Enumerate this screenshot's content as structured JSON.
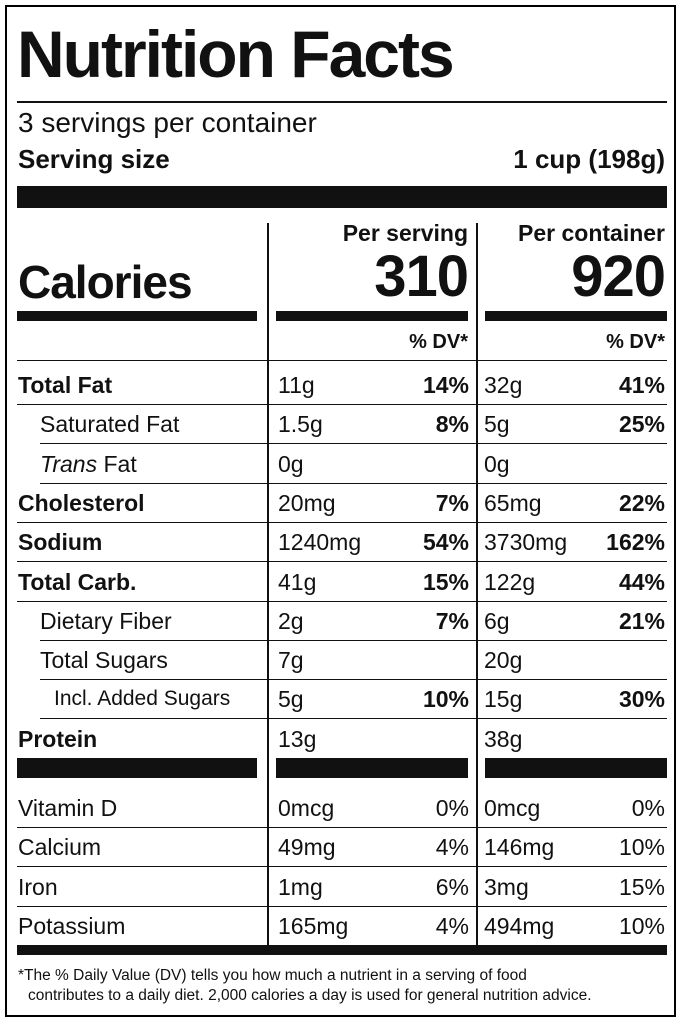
{
  "title": "Nutrition Facts",
  "servings_per_container": "3 servings per container",
  "serving_size": {
    "label": "Serving size",
    "value": "1 cup (198g)"
  },
  "calories": {
    "label": "Calories",
    "per_serving_header": "Per serving",
    "per_container_header": "Per container",
    "per_serving": "310",
    "per_container": "920"
  },
  "dv_header": "% DV*",
  "nutrients": [
    {
      "name": "Total Fat",
      "style": "bold",
      "serving_amount": "11g",
      "serving_dv": "14%",
      "container_amount": "32g",
      "container_dv": "41%"
    },
    {
      "name": "Saturated Fat",
      "style": "indent",
      "serving_amount": "1.5g",
      "serving_dv": "8%",
      "container_amount": "5g",
      "container_dv": "25%"
    },
    {
      "name_italic": "Trans",
      "name": " Fat",
      "style": "indent",
      "serving_amount": "0g",
      "serving_dv": "",
      "container_amount": "0g",
      "container_dv": ""
    },
    {
      "name": "Cholesterol",
      "style": "bold",
      "serving_amount": "20mg",
      "serving_dv": "7%",
      "container_amount": "65mg",
      "container_dv": "22%"
    },
    {
      "name": "Sodium",
      "style": "bold",
      "serving_amount": "1240mg",
      "serving_dv": "54%",
      "container_amount": "3730mg",
      "container_dv": "162%"
    },
    {
      "name": "Total Carb.",
      "style": "bold",
      "serving_amount": "41g",
      "serving_dv": "15%",
      "container_amount": "122g",
      "container_dv": "44%"
    },
    {
      "name": "Dietary Fiber",
      "style": "indent",
      "serving_amount": "2g",
      "serving_dv": "7%",
      "container_amount": "6g",
      "container_dv": "21%"
    },
    {
      "name": "Total Sugars",
      "style": "indent",
      "serving_amount": "7g",
      "serving_dv": "",
      "container_amount": "20g",
      "container_dv": ""
    },
    {
      "name": "Incl. Added Sugars",
      "style": "indent2",
      "serving_amount": "5g",
      "serving_dv": "10%",
      "container_amount": "15g",
      "container_dv": "30%"
    },
    {
      "name": "Protein",
      "style": "bold",
      "serving_amount": "13g",
      "serving_dv": "",
      "container_amount": "38g",
      "container_dv": ""
    }
  ],
  "vitamins": [
    {
      "name": "Vitamin D",
      "serving_amount": "0mcg",
      "serving_dv": "0%",
      "container_amount": "0mcg",
      "container_dv": "0%"
    },
    {
      "name": "Calcium",
      "serving_amount": "49mg",
      "serving_dv": "4%",
      "container_amount": "146mg",
      "container_dv": "10%"
    },
    {
      "name": "Iron",
      "serving_amount": "1mg",
      "serving_dv": "6%",
      "container_amount": "3mg",
      "container_dv": "15%"
    },
    {
      "name": "Potassium",
      "serving_amount": "165mg",
      "serving_dv": "4%",
      "container_amount": "494mg",
      "container_dv": "10%"
    }
  ],
  "footnote": {
    "line1": "*The % Daily Value (DV) tells you how much a nutrient in a serving of food",
    "line2": "contributes to a daily diet. 2,000 calories a day is used for general nutrition advice."
  }
}
